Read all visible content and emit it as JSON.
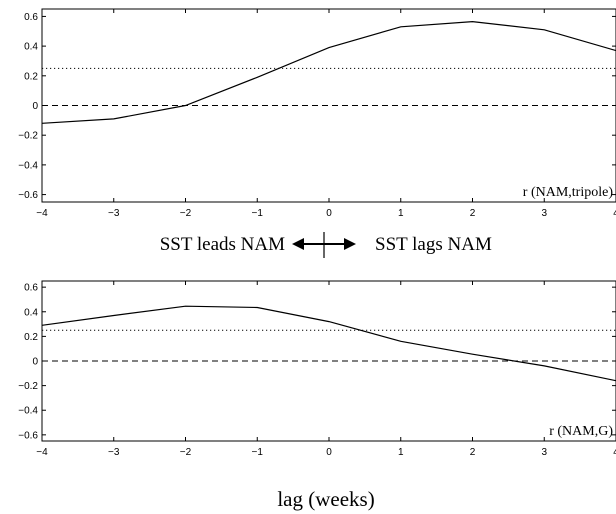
{
  "chart_data": [
    {
      "type": "line",
      "annotation": "r (NAM,tripole)",
      "xlim": [
        -4,
        4
      ],
      "ylim": [
        -0.65,
        0.65
      ],
      "x_ticks": [
        "−4",
        "−3",
        "−2",
        "−1",
        "0",
        "1",
        "2",
        "3",
        "4"
      ],
      "y_ticks": [
        "0.6",
        "0.4",
        "0.2",
        "0",
        "−0.2",
        "−0.4",
        "−0.6"
      ],
      "x": [
        -4,
        -3,
        -2,
        -1,
        0,
        1,
        2,
        3,
        4
      ],
      "y": [
        -0.12,
        -0.09,
        0.0,
        0.19,
        0.39,
        0.53,
        0.565,
        0.51,
        0.37
      ],
      "reference_lines": [
        {
          "y": 0.25,
          "style": "dotted"
        },
        {
          "y": 0,
          "style": "dashed"
        }
      ]
    },
    {
      "type": "line",
      "annotation": "r (NAM,G)",
      "xlim": [
        -4,
        4
      ],
      "ylim": [
        -0.65,
        0.65
      ],
      "x_ticks": [
        "−4",
        "−3",
        "−2",
        "−1",
        "0",
        "1",
        "2",
        "3",
        "4"
      ],
      "y_ticks": [
        "0.6",
        "0.4",
        "0.2",
        "0",
        "−0.2",
        "−0.4",
        "−0.6"
      ],
      "x": [
        -4,
        -3,
        -2,
        -1,
        0,
        1,
        2,
        3,
        4
      ],
      "y": [
        0.29,
        0.37,
        0.445,
        0.435,
        0.32,
        0.16,
        0.055,
        -0.04,
        -0.16
      ],
      "reference_lines": [
        {
          "y": 0.25,
          "style": "dotted"
        },
        {
          "y": 0,
          "style": "dashed"
        }
      ]
    }
  ],
  "middle_label": {
    "left": "SST leads NAM",
    "right": "SST lags NAM"
  },
  "xlabel": "lag (weeks)"
}
